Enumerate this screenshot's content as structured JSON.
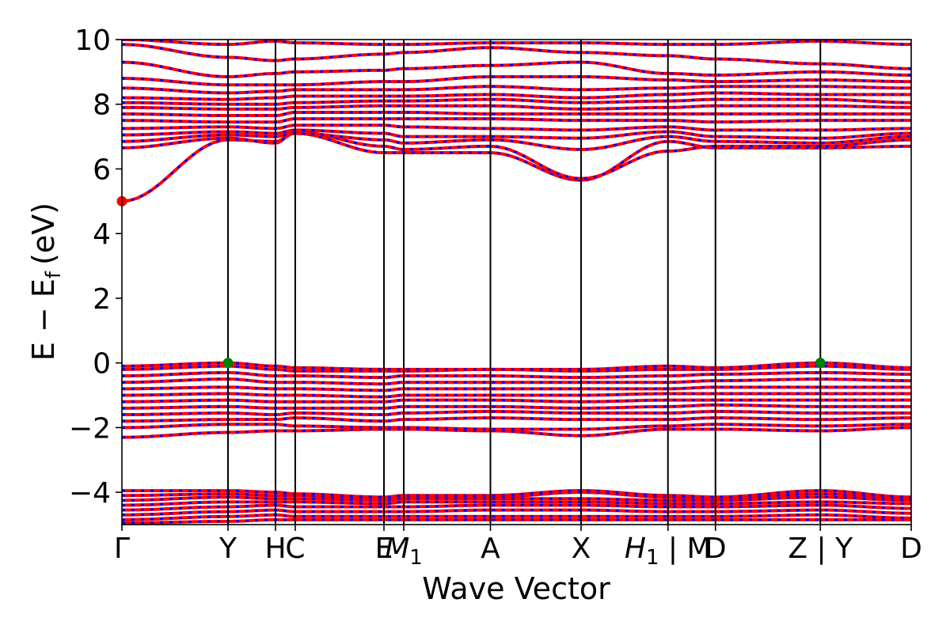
{
  "chart_data": {
    "type": "line",
    "title": "",
    "xlabel": "Wave Vector",
    "ylabel": "E − E",
    "ylabel_subscript": "f",
    "ylabel_unit": "(eV)",
    "ylim": [
      -5,
      10
    ],
    "y_ticks": [
      -4,
      -2,
      0,
      2,
      4,
      6,
      8,
      10
    ],
    "y_tick_labels": [
      "−4",
      "−2",
      "0",
      "2",
      "4",
      "6",
      "8",
      "10"
    ],
    "x_range": [
      0,
      1
    ],
    "high_symmetry_points": [
      {
        "label": "Γ",
        "x": 0.0
      },
      {
        "label": "Y",
        "x": 0.1344
      },
      {
        "label": "H",
        "x": 0.1946
      },
      {
        "label": "C",
        "x": 0.2196
      },
      {
        "label": "E",
        "x": 0.332
      },
      {
        "label": "M1",
        "label_main": "M",
        "label_sub": "1",
        "x": 0.3571
      },
      {
        "label": "A",
        "x": 0.4669
      },
      {
        "label": "X",
        "x": 0.5817
      },
      {
        "label": "H1 | M",
        "label_main": "H",
        "label_sub": "1",
        "label_tail": " | M",
        "x": 0.6918
      },
      {
        "label": "D",
        "x": 0.752
      },
      {
        "label": "Z | Y",
        "x": 0.8849
      },
      {
        "label": "D",
        "x": 1.0
      }
    ],
    "series_colors": {
      "spin_up": "#ff0000",
      "spin_down": "#0000ff"
    },
    "band_extrema": [
      {
        "name": "conduction-band-minimum",
        "x": 0.0,
        "y": 5.0,
        "color": "#ff0000"
      },
      {
        "name": "valence-band-maximum-1",
        "x": 0.1344,
        "y": 0.0,
        "color": "#008000"
      },
      {
        "name": "valence-band-maximum-2",
        "x": 0.8849,
        "y": 0.0,
        "color": "#008000"
      }
    ],
    "bands": [
      {
        "name": "valence-low-1",
        "y": [
          -4.95,
          -4.9,
          -4.85,
          -4.85,
          -4.85,
          -4.85,
          -4.85,
          -4.85,
          -4.85,
          -4.85,
          -4.85,
          -4.85
        ]
      },
      {
        "name": "valence-low-2",
        "y": [
          -4.85,
          -4.75,
          -4.7,
          -4.75,
          -4.75,
          -4.75,
          -4.75,
          -4.75,
          -4.75,
          -4.75,
          -4.7,
          -4.8
        ]
      },
      {
        "name": "valence-low-3",
        "y": [
          -4.7,
          -4.6,
          -4.55,
          -4.6,
          -4.6,
          -4.6,
          -4.55,
          -4.55,
          -4.6,
          -4.6,
          -4.55,
          -4.65
        ]
      },
      {
        "name": "valence-low-4",
        "y": [
          -4.55,
          -4.45,
          -4.4,
          -4.45,
          -4.45,
          -4.45,
          -4.4,
          -4.4,
          -4.45,
          -4.45,
          -4.4,
          -4.5
        ]
      },
      {
        "name": "valence-low-5",
        "y": [
          -4.4,
          -4.3,
          -4.3,
          -4.3,
          -4.35,
          -4.3,
          -4.3,
          -4.3,
          -4.35,
          -4.35,
          -4.3,
          -4.35
        ]
      },
      {
        "name": "valence-low-6",
        "y": [
          -4.25,
          -4.15,
          -4.2,
          -4.2,
          -4.25,
          -4.2,
          -4.2,
          -4.2,
          -4.25,
          -4.25,
          -4.15,
          -4.25
        ]
      },
      {
        "name": "valence-low-7",
        "y": [
          -4.1,
          -4.05,
          -4.1,
          -4.1,
          -4.2,
          -4.15,
          -4.15,
          -4.0,
          -4.15,
          -4.2,
          -4.05,
          -4.2
        ]
      },
      {
        "name": "valence-low-8",
        "y": [
          -3.95,
          -3.95,
          -4.0,
          -4.05,
          -4.15,
          -4.1,
          -4.1,
          -3.95,
          -4.1,
          -4.15,
          -3.95,
          -4.15
        ]
      },
      {
        "name": "valence-1",
        "y": [
          -2.3,
          -2.15,
          -2.1,
          -2.1,
          -2.05,
          -2.05,
          -2.1,
          -2.25,
          -2.05,
          -2.05,
          -2.1,
          -2.0
        ]
      },
      {
        "name": "valence-2",
        "y": [
          -2.0,
          -1.9,
          -1.9,
          -1.95,
          -2.0,
          -2.0,
          -2.05,
          -2.05,
          -1.95,
          -1.9,
          -1.95,
          -1.9
        ]
      },
      {
        "name": "valence-3",
        "y": [
          -1.8,
          -1.75,
          -1.75,
          -1.7,
          -1.8,
          -1.75,
          -1.7,
          -1.75,
          -1.75,
          -1.7,
          -1.75,
          -1.7
        ]
      },
      {
        "name": "valence-4",
        "y": [
          -1.6,
          -1.55,
          -1.6,
          -1.55,
          -1.6,
          -1.55,
          -1.5,
          -1.55,
          -1.55,
          -1.5,
          -1.55,
          -1.55
        ]
      },
      {
        "name": "valence-5",
        "y": [
          -1.4,
          -1.35,
          -1.4,
          -1.4,
          -1.4,
          -1.35,
          -1.35,
          -1.4,
          -1.35,
          -1.3,
          -1.35,
          -1.35
        ]
      },
      {
        "name": "valence-6",
        "y": [
          -1.2,
          -1.15,
          -1.2,
          -1.2,
          -1.2,
          -1.15,
          -1.15,
          -1.2,
          -1.15,
          -1.15,
          -1.15,
          -1.15
        ]
      },
      {
        "name": "valence-7",
        "y": [
          -1.0,
          -0.95,
          -1.0,
          -1.0,
          -1.05,
          -1.0,
          -1.0,
          -1.0,
          -0.95,
          -0.95,
          -0.95,
          -0.95
        ]
      },
      {
        "name": "valence-8",
        "y": [
          -0.8,
          -0.75,
          -0.8,
          -0.8,
          -0.85,
          -0.8,
          -0.8,
          -0.8,
          -0.8,
          -0.75,
          -0.75,
          -0.75
        ]
      },
      {
        "name": "valence-9",
        "y": [
          -0.6,
          -0.5,
          -0.6,
          -0.6,
          -0.65,
          -0.6,
          -0.6,
          -0.6,
          -0.6,
          -0.55,
          -0.5,
          -0.55
        ]
      },
      {
        "name": "valence-10",
        "y": [
          -0.4,
          -0.3,
          -0.4,
          -0.4,
          -0.45,
          -0.4,
          -0.4,
          -0.45,
          -0.4,
          -0.35,
          -0.3,
          -0.35
        ]
      },
      {
        "name": "valence-11",
        "y": [
          -0.2,
          -0.1,
          -0.2,
          -0.25,
          -0.25,
          -0.25,
          -0.2,
          -0.25,
          -0.2,
          -0.2,
          -0.1,
          -0.2
        ]
      },
      {
        "name": "valence-top",
        "y": [
          -0.1,
          0.0,
          -0.1,
          -0.15,
          -0.2,
          -0.2,
          -0.2,
          -0.2,
          -0.1,
          -0.15,
          0.0,
          -0.15
        ]
      },
      {
        "name": "conduction-1",
        "y": [
          5.0,
          6.9,
          6.85,
          7.1,
          6.5,
          6.5,
          6.5,
          5.65,
          6.85,
          6.65,
          6.65,
          6.7
        ]
      },
      {
        "name": "conduction-2",
        "y": [
          6.65,
          6.95,
          6.8,
          7.15,
          6.7,
          6.6,
          6.7,
          5.7,
          6.55,
          6.7,
          6.7,
          6.9
        ]
      },
      {
        "name": "conduction-3",
        "y": [
          6.85,
          7.05,
          7.0,
          7.1,
          6.9,
          6.8,
          6.9,
          6.6,
          7.0,
          6.85,
          6.8,
          7.0
        ]
      },
      {
        "name": "conduction-4",
        "y": [
          7.05,
          7.15,
          7.1,
          7.2,
          7.1,
          7.0,
          7.0,
          6.95,
          7.15,
          7.0,
          6.95,
          7.1
        ]
      },
      {
        "name": "conduction-5",
        "y": [
          7.25,
          7.3,
          7.25,
          7.35,
          7.35,
          7.3,
          7.25,
          7.2,
          7.3,
          7.2,
          7.2,
          7.25
        ]
      },
      {
        "name": "conduction-6",
        "y": [
          7.5,
          7.45,
          7.45,
          7.55,
          7.55,
          7.55,
          7.55,
          7.5,
          7.5,
          7.45,
          7.5,
          7.5
        ]
      },
      {
        "name": "conduction-7",
        "y": [
          7.7,
          7.65,
          7.65,
          7.75,
          7.75,
          7.75,
          7.7,
          7.7,
          7.7,
          7.7,
          7.7,
          7.7
        ]
      },
      {
        "name": "conduction-8",
        "y": [
          7.9,
          7.85,
          7.85,
          7.9,
          7.95,
          7.95,
          7.95,
          7.85,
          7.9,
          7.95,
          7.95,
          7.9
        ]
      },
      {
        "name": "conduction-9",
        "y": [
          8.05,
          8.0,
          8.0,
          8.05,
          8.1,
          8.1,
          8.15,
          8.05,
          8.1,
          8.15,
          8.15,
          8.05
        ]
      },
      {
        "name": "conduction-10",
        "y": [
          8.2,
          8.15,
          8.2,
          8.25,
          8.25,
          8.25,
          8.3,
          8.2,
          8.3,
          8.35,
          8.3,
          8.3
        ]
      },
      {
        "name": "conduction-11",
        "y": [
          8.5,
          8.35,
          8.4,
          8.45,
          8.45,
          8.45,
          8.55,
          8.45,
          8.5,
          8.55,
          8.55,
          8.5
        ]
      },
      {
        "name": "conduction-12",
        "y": [
          8.8,
          8.6,
          8.6,
          8.6,
          8.7,
          8.7,
          8.85,
          8.85,
          8.75,
          8.7,
          8.75,
          8.7
        ]
      },
      {
        "name": "conduction-13",
        "y": [
          9.3,
          8.85,
          8.95,
          9.0,
          9.05,
          9.1,
          9.2,
          9.3,
          8.95,
          8.9,
          9.0,
          8.9
        ]
      },
      {
        "name": "conduction-14",
        "y": [
          9.85,
          9.45,
          9.35,
          9.4,
          9.55,
          9.6,
          9.75,
          9.6,
          9.5,
          9.4,
          9.25,
          9.1
        ]
      },
      {
        "name": "conduction-15",
        "y": [
          10.0,
          9.85,
          9.95,
          9.9,
          9.85,
          9.85,
          9.9,
          9.9,
          9.85,
          9.85,
          9.95,
          9.85
        ]
      }
    ]
  }
}
